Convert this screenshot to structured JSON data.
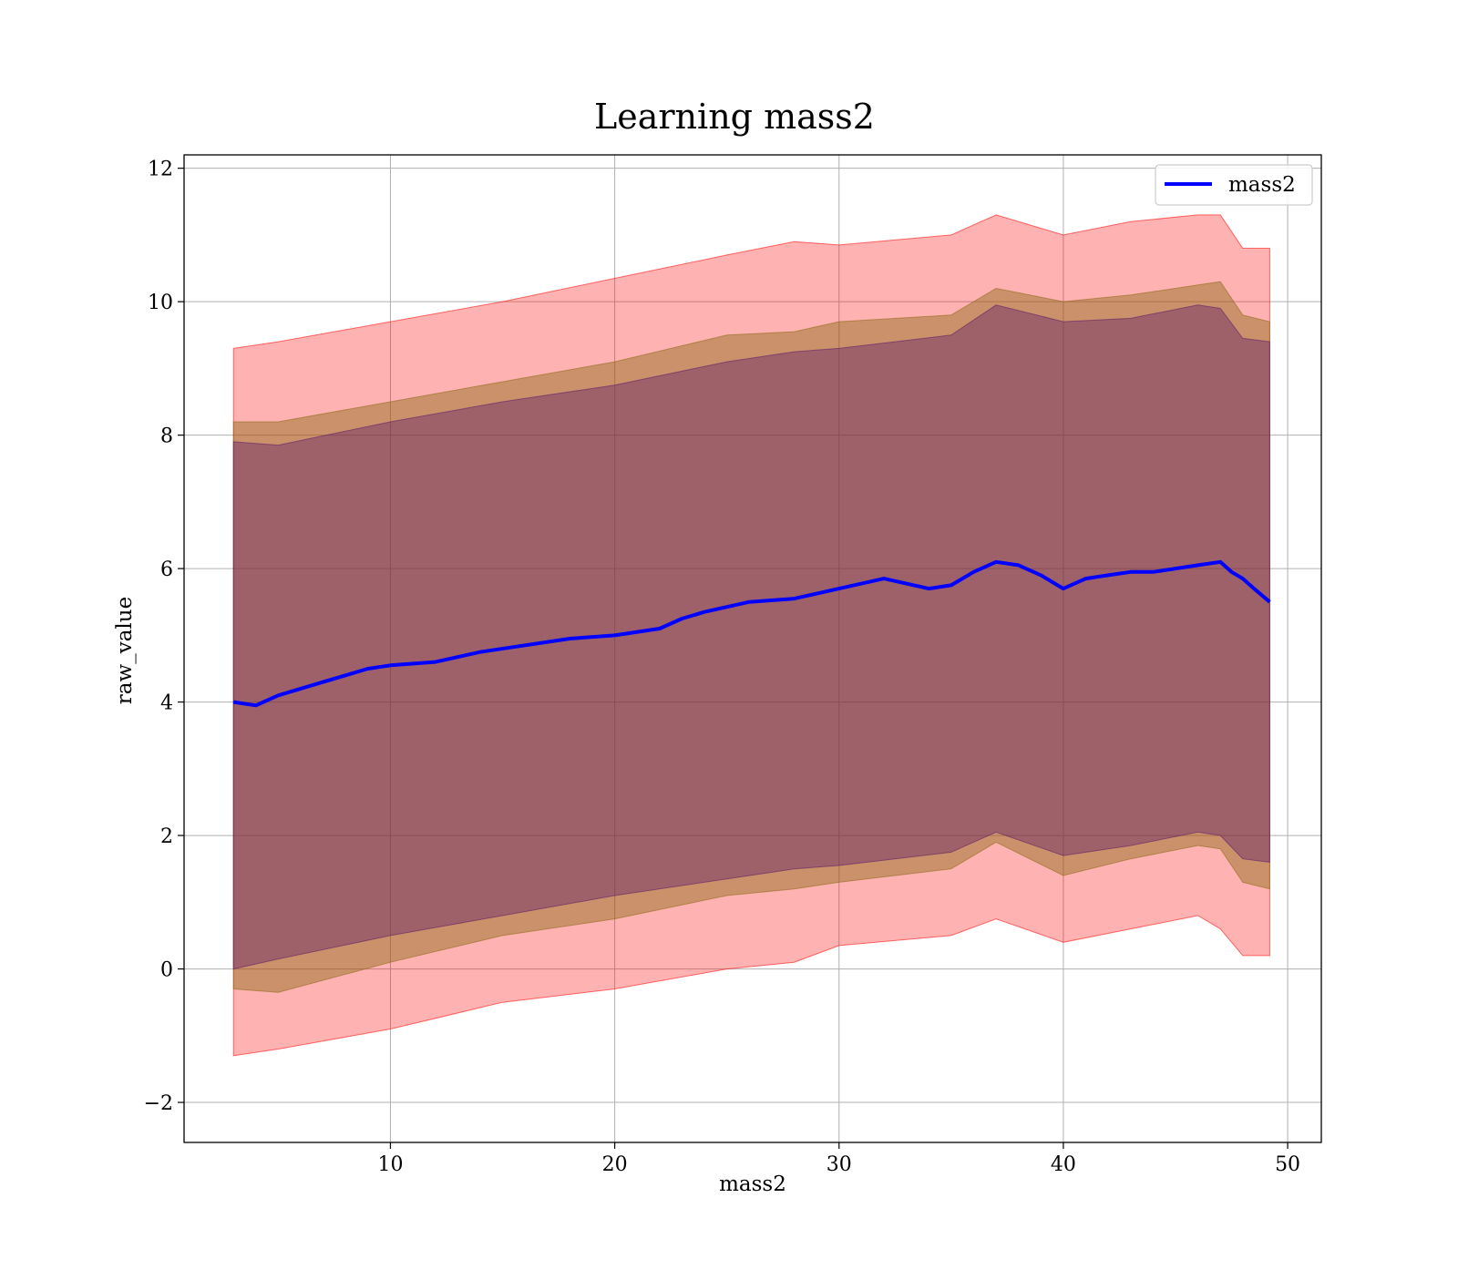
{
  "chart_data": {
    "type": "line",
    "title": "Learning mass2",
    "xlabel": "mass2",
    "ylabel": "raw_value",
    "xlim": [
      0.8,
      51.5
    ],
    "ylim": [
      -2.6,
      12.2
    ],
    "xticks": [
      10,
      20,
      30,
      40,
      50
    ],
    "xtick_labels": [
      "10",
      "20",
      "30",
      "40",
      "50"
    ],
    "yticks": [
      -2,
      0,
      2,
      4,
      6,
      8,
      10,
      12
    ],
    "ytick_labels": [
      "−2",
      "0",
      "2",
      "4",
      "6",
      "8",
      "10",
      "12"
    ],
    "grid": true,
    "legend": {
      "position": "top-right",
      "entries": [
        "mass2"
      ]
    },
    "colors": {
      "line": "#0000ff",
      "band_outer": "#ff0000",
      "band_middle": "#8b6914",
      "band_inner": "#5b1a66"
    },
    "series": [
      {
        "name": "mass2",
        "x": [
          3,
          4,
          5,
          6,
          7,
          8,
          9,
          10,
          12,
          14,
          16,
          18,
          20,
          22,
          23,
          24,
          26,
          28,
          30,
          32,
          34,
          35,
          36,
          37,
          38,
          39,
          40,
          41,
          42,
          43,
          44,
          45,
          46,
          47,
          47.5,
          48,
          48.5,
          49.2
        ],
        "y": [
          4.0,
          3.95,
          4.1,
          4.2,
          4.3,
          4.4,
          4.5,
          4.55,
          4.6,
          4.75,
          4.85,
          4.95,
          5.0,
          5.1,
          5.25,
          5.35,
          5.5,
          5.55,
          5.7,
          5.85,
          5.7,
          5.75,
          5.95,
          6.1,
          6.05,
          5.9,
          5.7,
          5.85,
          5.9,
          5.95,
          5.95,
          6.0,
          6.05,
          6.1,
          5.95,
          5.85,
          5.7,
          5.5
        ]
      }
    ],
    "bands": [
      {
        "x": [
          3,
          5,
          10,
          15,
          20,
          25,
          28,
          30,
          35,
          37,
          40,
          43,
          46,
          47,
          48,
          49.2
        ],
        "lower": [
          -1.3,
          -1.2,
          -0.9,
          -0.5,
          -0.3,
          0.0,
          0.1,
          0.35,
          0.5,
          0.75,
          0.4,
          0.6,
          0.8,
          0.6,
          0.2,
          0.2
        ],
        "upper": [
          9.3,
          9.4,
          9.7,
          10.0,
          10.35,
          10.7,
          10.9,
          10.85,
          11.0,
          11.3,
          11.0,
          11.2,
          11.3,
          11.3,
          10.8,
          10.8
        ]
      },
      {
        "x": [
          3,
          5,
          10,
          15,
          20,
          25,
          28,
          30,
          35,
          37,
          40,
          43,
          46,
          47,
          48,
          49.2
        ],
        "lower": [
          -0.3,
          -0.35,
          0.1,
          0.5,
          0.75,
          1.1,
          1.2,
          1.3,
          1.5,
          1.9,
          1.4,
          1.65,
          1.85,
          1.8,
          1.3,
          1.2
        ],
        "upper": [
          8.2,
          8.2,
          8.5,
          8.8,
          9.1,
          9.5,
          9.55,
          9.7,
          9.8,
          10.2,
          10.0,
          10.1,
          10.25,
          10.3,
          9.8,
          9.7
        ]
      },
      {
        "x": [
          3,
          5,
          10,
          15,
          20,
          25,
          28,
          30,
          35,
          37,
          40,
          43,
          46,
          47,
          48,
          49.2
        ],
        "lower": [
          0.0,
          0.15,
          0.5,
          0.8,
          1.1,
          1.35,
          1.5,
          1.55,
          1.75,
          2.05,
          1.7,
          1.85,
          2.05,
          2.0,
          1.65,
          1.6
        ],
        "upper": [
          7.9,
          7.85,
          8.2,
          8.5,
          8.75,
          9.1,
          9.25,
          9.3,
          9.5,
          9.95,
          9.7,
          9.75,
          9.95,
          9.9,
          9.45,
          9.4
        ]
      }
    ]
  }
}
